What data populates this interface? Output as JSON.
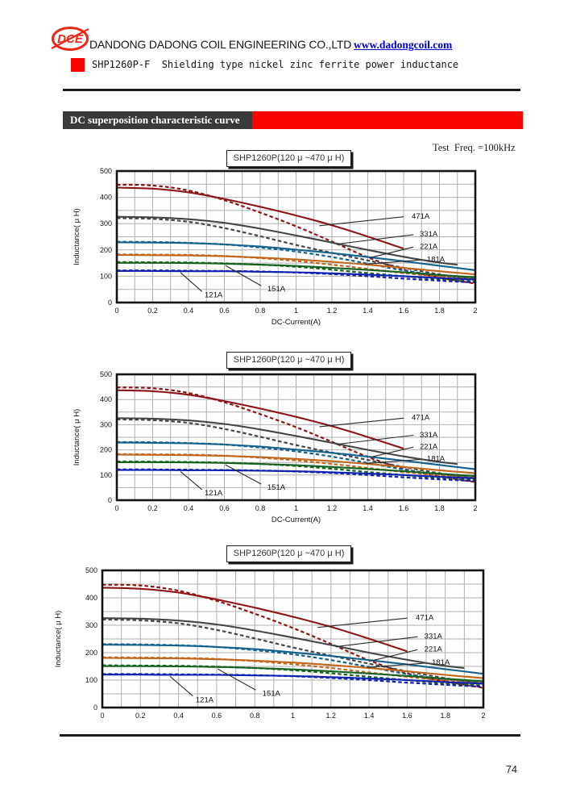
{
  "header": {
    "logo_text": "DCE",
    "company_name": "DANDONG DADONG COIL ENGINEERING CO.,LTD",
    "website": "www.dadongcoil.com",
    "product_title": "SHP1260P-F  Shielding type nickel zinc ferrite power inductance"
  },
  "section_bar": {
    "title": "DC superposition characteristic curve"
  },
  "test_condition": "Test  Freq. =100kHz",
  "page_number": "74",
  "chart_data": {
    "type": "line",
    "title": "SHP1260P(120 μ ~470 μ H)",
    "xlabel": "DC-Current(A)",
    "ylabel": "Inductance( μ H)",
    "xlim": [
      0,
      2
    ],
    "ylim": [
      0,
      500
    ],
    "x_ticks": [
      "0",
      "0.2",
      "0.4",
      "0.6",
      "0.8",
      "1",
      "1.2",
      "1.4",
      "1.6",
      "1.8",
      "2"
    ],
    "y_ticks": [
      "0",
      "100",
      "200",
      "300",
      "400",
      "500"
    ],
    "grid": true,
    "grid_color": "#b0b0b0",
    "repeat_count": 3,
    "series": [
      {
        "name": "471A",
        "color": "#8f1416",
        "solid": [
          [
            0,
            437
          ],
          [
            0.2,
            433
          ],
          [
            0.4,
            419
          ],
          [
            0.6,
            394
          ],
          [
            0.8,
            364
          ],
          [
            1.0,
            331
          ],
          [
            1.2,
            294
          ],
          [
            1.4,
            251
          ],
          [
            1.6,
            205
          ]
        ],
        "dashed": [
          [
            0,
            448
          ],
          [
            0.2,
            445
          ],
          [
            0.4,
            426
          ],
          [
            0.6,
            389
          ],
          [
            0.8,
            342
          ],
          [
            1.0,
            290
          ],
          [
            1.2,
            232
          ],
          [
            1.4,
            172
          ],
          [
            1.6,
            125
          ],
          [
            1.8,
            95
          ],
          [
            2.0,
            72
          ]
        ]
      },
      {
        "name": "331A",
        "color": "#434649",
        "solid": [
          [
            0,
            326
          ],
          [
            0.2,
            324
          ],
          [
            0.4,
            317
          ],
          [
            0.6,
            303
          ],
          [
            0.8,
            281
          ],
          [
            1.0,
            255
          ],
          [
            1.2,
            228
          ],
          [
            1.4,
            200
          ],
          [
            1.6,
            174
          ],
          [
            1.8,
            152
          ],
          [
            1.9,
            144
          ]
        ],
        "dashed": [
          [
            0,
            321
          ],
          [
            0.2,
            318
          ],
          [
            0.4,
            307
          ],
          [
            0.6,
            283
          ],
          [
            0.8,
            252
          ],
          [
            1.0,
            219
          ],
          [
            1.2,
            189
          ],
          [
            1.4,
            160
          ],
          [
            1.6,
            132
          ],
          [
            1.8,
            107
          ],
          [
            2.0,
            87
          ]
        ]
      },
      {
        "name": "221A",
        "color": "#15618d",
        "solid": [
          [
            0,
            229
          ],
          [
            0.2,
            228
          ],
          [
            0.4,
            226
          ],
          [
            0.6,
            221
          ],
          [
            0.8,
            213
          ],
          [
            1.0,
            201
          ],
          [
            1.2,
            188
          ],
          [
            1.4,
            173
          ],
          [
            1.6,
            157
          ],
          [
            1.8,
            140
          ],
          [
            2.0,
            123
          ]
        ],
        "dashed": [
          [
            0,
            231
          ],
          [
            0.2,
            230
          ],
          [
            0.4,
            227
          ],
          [
            0.6,
            221
          ],
          [
            0.8,
            209
          ],
          [
            1.0,
            194
          ],
          [
            1.2,
            173
          ],
          [
            1.4,
            148
          ],
          [
            1.6,
            122
          ],
          [
            1.8,
            103
          ],
          [
            2.0,
            90
          ]
        ]
      },
      {
        "name": "181A",
        "color": "#c2661c",
        "solid": [
          [
            0,
            181
          ],
          [
            0.2,
            180
          ],
          [
            0.4,
            179
          ],
          [
            0.6,
            176
          ],
          [
            0.8,
            171
          ],
          [
            1.0,
            164
          ],
          [
            1.2,
            155
          ],
          [
            1.4,
            144
          ],
          [
            1.6,
            132
          ],
          [
            1.8,
            119
          ],
          [
            2.0,
            107
          ]
        ],
        "dashed": [
          [
            0,
            183
          ],
          [
            0.2,
            182
          ],
          [
            0.4,
            181
          ],
          [
            0.6,
            177
          ],
          [
            0.8,
            169
          ],
          [
            1.0,
            158
          ],
          [
            1.2,
            144
          ],
          [
            1.4,
            128
          ],
          [
            1.6,
            112
          ],
          [
            1.8,
            99
          ],
          [
            2.0,
            88
          ]
        ]
      },
      {
        "name": "151A",
        "color": "#15611f",
        "solid": [
          [
            0,
            151
          ],
          [
            0.2,
            151
          ],
          [
            0.4,
            150
          ],
          [
            0.6,
            148
          ],
          [
            0.8,
            144
          ],
          [
            1.0,
            139
          ],
          [
            1.2,
            132
          ],
          [
            1.4,
            124
          ],
          [
            1.6,
            115
          ],
          [
            1.8,
            105
          ],
          [
            2.0,
            96
          ]
        ],
        "dashed": [
          [
            0,
            154
          ],
          [
            0.2,
            153
          ],
          [
            0.4,
            152
          ],
          [
            0.6,
            149
          ],
          [
            0.8,
            144
          ],
          [
            1.0,
            136
          ],
          [
            1.2,
            125
          ],
          [
            1.4,
            112
          ],
          [
            1.6,
            100
          ],
          [
            1.8,
            89
          ],
          [
            2.0,
            80
          ]
        ]
      },
      {
        "name": "121A",
        "color": "#1021b0",
        "solid": [
          [
            0,
            120
          ],
          [
            0.2,
            120
          ],
          [
            0.4,
            119
          ],
          [
            0.6,
            119
          ],
          [
            0.8,
            117
          ],
          [
            1.0,
            115
          ],
          [
            1.2,
            111
          ],
          [
            1.4,
            106
          ],
          [
            1.6,
            100
          ],
          [
            1.8,
            93
          ],
          [
            2.0,
            87
          ]
        ],
        "dashed": [
          [
            0,
            122
          ],
          [
            0.2,
            122
          ],
          [
            0.4,
            121
          ],
          [
            0.6,
            120
          ],
          [
            0.8,
            118
          ],
          [
            1.0,
            114
          ],
          [
            1.2,
            108
          ],
          [
            1.4,
            100
          ],
          [
            1.6,
            91
          ],
          [
            1.8,
            83
          ],
          [
            2.0,
            76
          ]
        ]
      }
    ],
    "annotations": [
      {
        "label": "471A",
        "tx": 1.645,
        "ty": 330,
        "line": [
          1.6,
          326,
          1.13,
          292
        ]
      },
      {
        "label": "331A",
        "tx": 1.69,
        "ty": 262,
        "line": [
          1.655,
          258,
          1.225,
          222
        ]
      },
      {
        "label": "221A",
        "tx": 1.69,
        "ty": 214,
        "line": [
          1.655,
          211,
          1.41,
          170
        ]
      },
      {
        "label": "181A",
        "tx": 1.73,
        "ty": 166,
        "line": [
          1.695,
          162,
          1.39,
          146
        ]
      },
      {
        "label": "121A",
        "tx": 0.49,
        "ty": 30,
        "line": [
          0.475,
          42,
          0.355,
          114
        ]
      },
      {
        "label": "151A",
        "tx": 0.84,
        "ty": 53,
        "line": [
          0.805,
          64,
          0.605,
          141
        ]
      }
    ]
  }
}
